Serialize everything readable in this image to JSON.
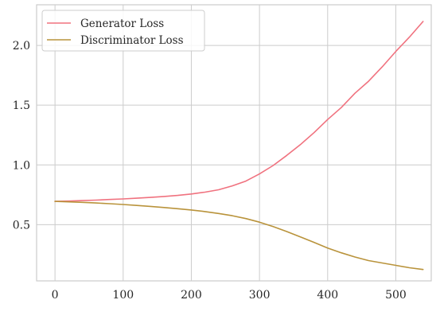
{
  "chart_data": {
    "type": "line",
    "title": "",
    "xlabel": "",
    "ylabel": "",
    "xlim": [
      -27,
      552
    ],
    "ylim": [
      0.03,
      2.34
    ],
    "x_ticks": [
      0,
      100,
      200,
      300,
      400,
      500
    ],
    "y_ticks": [
      0.5,
      1.0,
      1.5,
      2.0
    ],
    "x_tick_labels": [
      "0",
      "100",
      "200",
      "300",
      "400",
      "500"
    ],
    "y_tick_labels": [
      "0.5",
      "1.0",
      "1.5",
      "2.0"
    ],
    "grid": true,
    "legend_position": "top-left",
    "x": [
      0,
      20,
      40,
      60,
      80,
      100,
      120,
      140,
      160,
      180,
      200,
      220,
      240,
      260,
      280,
      300,
      320,
      340,
      360,
      380,
      400,
      420,
      440,
      460,
      480,
      500,
      520,
      540
    ],
    "series": [
      {
        "name": "Generator Loss",
        "color": "#f0727f",
        "values": [
          0.695,
          0.698,
          0.702,
          0.706,
          0.711,
          0.716,
          0.722,
          0.728,
          0.736,
          0.745,
          0.757,
          0.772,
          0.792,
          0.825,
          0.865,
          0.925,
          0.995,
          1.08,
          1.17,
          1.27,
          1.38,
          1.48,
          1.6,
          1.7,
          1.82,
          1.95,
          2.07,
          2.2
        ]
      },
      {
        "name": "Discriminator Loss",
        "color": "#b9933b",
        "values": [
          0.695,
          0.691,
          0.687,
          0.682,
          0.676,
          0.669,
          0.661,
          0.653,
          0.644,
          0.634,
          0.623,
          0.61,
          0.594,
          0.575,
          0.551,
          0.521,
          0.484,
          0.443,
          0.398,
          0.352,
          0.305,
          0.265,
          0.23,
          0.2,
          0.18,
          0.16,
          0.14,
          0.125
        ]
      }
    ]
  }
}
